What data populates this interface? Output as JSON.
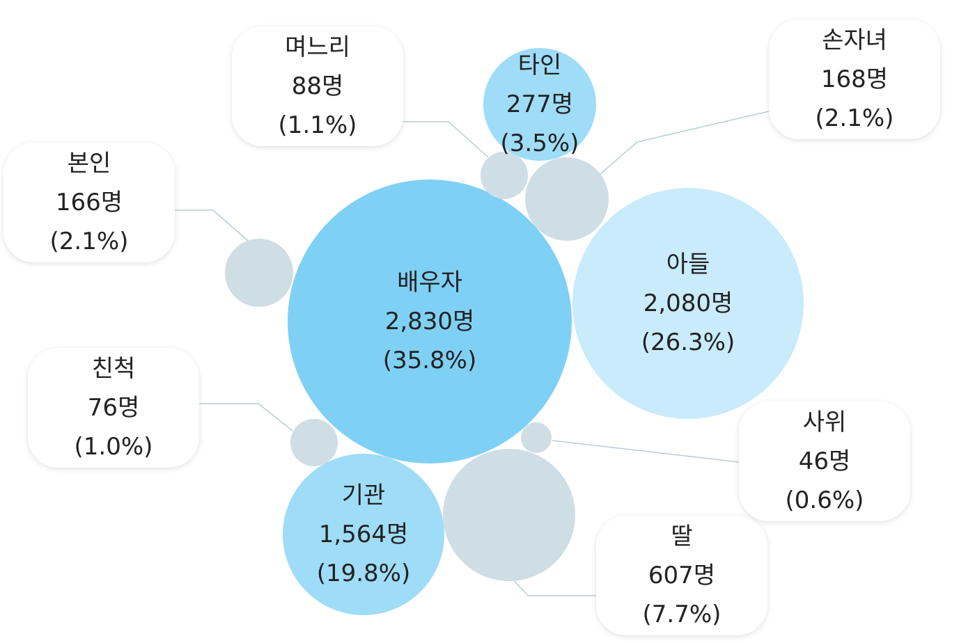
{
  "chart_data": {
    "type": "bubble",
    "items": [
      {
        "name": "배우자",
        "count": "2,830명",
        "percent": "(35.8%)",
        "value": 2830,
        "share": 35.8,
        "color": "#7fd0f5",
        "label_inside": true
      },
      {
        "name": "아들",
        "count": "2,080명",
        "percent": "(26.3%)",
        "value": 2080,
        "share": 26.3,
        "color": "#c9ebfb",
        "label_inside": true
      },
      {
        "name": "기관",
        "count": "1,564명",
        "percent": "(19.8%)",
        "value": 1564,
        "share": 19.8,
        "color": "#9edcf7",
        "label_inside": true
      },
      {
        "name": "딸",
        "count": "607명",
        "percent": "(7.7%)",
        "value": 607,
        "share": 7.7,
        "color": "#cfdde4",
        "label_inside": false
      },
      {
        "name": "타인",
        "count": "277명",
        "percent": "(3.5%)",
        "value": 277,
        "share": 3.5,
        "color": "#9edcf7",
        "label_inside": true
      },
      {
        "name": "손자녀",
        "count": "168명",
        "percent": "(2.1%)",
        "value": 168,
        "share": 2.1,
        "color": "#cfdde4",
        "label_inside": false
      },
      {
        "name": "본인",
        "count": "166명",
        "percent": "(2.1%)",
        "value": 166,
        "share": 2.1,
        "color": "#cfdde4",
        "label_inside": false
      },
      {
        "name": "며느리",
        "count": "88명",
        "percent": "(1.1%)",
        "value": 88,
        "share": 1.1,
        "color": "#cfdde4",
        "label_inside": false
      },
      {
        "name": "친척",
        "count": "76명",
        "percent": "(1.0%)",
        "value": 76,
        "share": 1.0,
        "color": "#cfdde4",
        "label_inside": false
      },
      {
        "name": "사위",
        "count": "46명",
        "percent": "(0.6%)",
        "value": 46,
        "share": 0.6,
        "color": "#cfdde4",
        "label_inside": false
      }
    ],
    "callout_box_color": "#ffffff",
    "connector_color": "#b9ccd6"
  }
}
